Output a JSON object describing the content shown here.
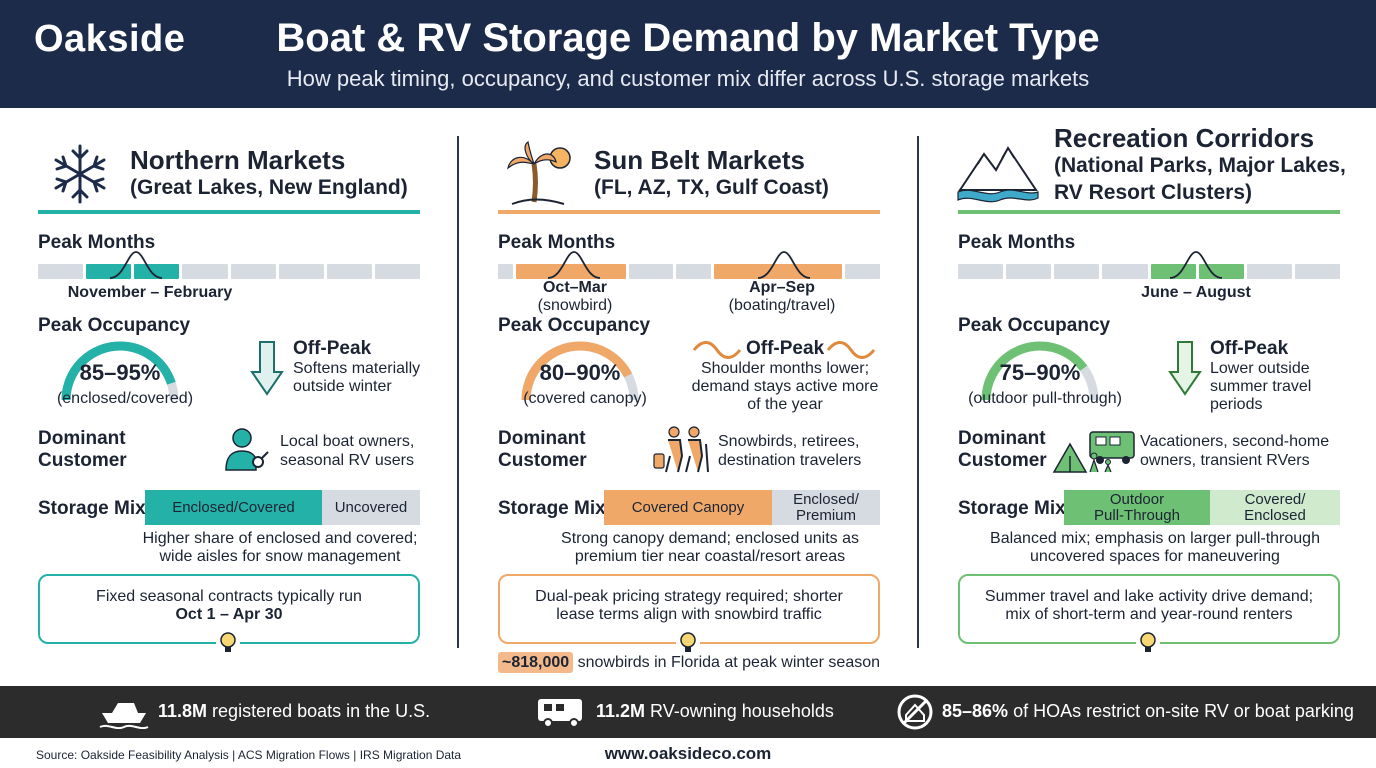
{
  "header": {
    "brand": "Oakside",
    "title": "Boat & RV Storage Demand by Market Type",
    "subtitle": "How peak timing, occupancy, and customer mix differ across U.S. storage markets"
  },
  "labels": {
    "peak_months": "Peak Months",
    "peak_occupancy": "Peak Occupancy",
    "dominant_customer_1": "Dominant",
    "dominant_customer_2": "Customer",
    "storage_mix": "Storage Mix",
    "off_peak": "Off-Peak"
  },
  "colors": {
    "header_bg": "#1c2b4a",
    "northern": "#24b1a8",
    "sunbelt": "#f0a868",
    "recreation": "#6ec174",
    "track": "#d6dbe2",
    "footer_bg": "#2c2c2c"
  },
  "northern": {
    "title": "Northern Markets",
    "subtitle": "(Great Lakes, New England)",
    "icon": "snowflake-icon",
    "peak_range": "November – February",
    "occupancy": "85–95%",
    "occupancy_note": "(enclosed/covered)",
    "occupancy_fill": 0.9,
    "offpeak_1": "Softens materially",
    "offpeak_2": "outside winter",
    "customer_1": "Local boat owners,",
    "customer_2": "seasonal RV users",
    "mix_a": "Enclosed/Covered",
    "mix_b": "Uncovered",
    "mix_note_1": "Higher share of enclosed and covered;",
    "mix_note_2": "wide aisles for snow management",
    "callout_1": "Fixed seasonal contracts typically run",
    "callout_2": "Oct 1 – Apr 30"
  },
  "sunbelt": {
    "title": "Sun Belt Markets",
    "subtitle": "(FL, AZ, TX, Gulf Coast)",
    "icon": "palm-tree-sun-icon",
    "peak_a": "Oct–Mar",
    "peak_a_note": "(snowbird)",
    "peak_b": "Apr–Sep",
    "peak_b_note": "(boating/travel)",
    "occupancy": "80–90%",
    "occupancy_note": "(covered canopy)",
    "occupancy_fill": 0.85,
    "offpeak_1": "Shoulder months lower;",
    "offpeak_2": "demand stays active more",
    "offpeak_3": "of the year",
    "customer_1": "Snowbirds, retirees,",
    "customer_2": "destination travelers",
    "mix_a": "Covered Canopy",
    "mix_b_1": "Enclosed/",
    "mix_b_2": "Premium",
    "mix_note_1": "Strong canopy demand; enclosed units as",
    "mix_note_2": "premium tier near coastal/resort areas",
    "callout_1": "Dual-peak pricing strategy required; shorter",
    "callout_2": "lease terms align with snowbird traffic",
    "snowbird_num": "~818,000",
    "snowbird_text": " snowbirds in Florida at peak winter season"
  },
  "recreation": {
    "title": "Recreation Corridors",
    "subtitle_1": "(National Parks, Major Lakes,",
    "subtitle_2": "RV Resort Clusters)",
    "icon": "mountain-lake-icon",
    "peak_range": "June – August",
    "occupancy": "75–90%",
    "occupancy_note": "(outdoor pull-through)",
    "occupancy_fill": 0.8,
    "offpeak_1": "Lower outside",
    "offpeak_2": "summer travel",
    "offpeak_3": "periods",
    "customer_1": "Vacationers, second-home",
    "customer_2": "owners, transient RVers",
    "mix_a_1": "Outdoor",
    "mix_a_2": "Pull-Through",
    "mix_b_1": "Covered/",
    "mix_b_2": "Enclosed",
    "mix_note_1": "Balanced mix; emphasis on larger pull-through",
    "mix_note_2": "uncovered spaces for maneuvering",
    "callout_1": "Summer travel and lake activity drive demand;",
    "callout_2": "mix of short-term and year-round renters"
  },
  "stats": [
    {
      "icon": "boat-icon",
      "value": "11.8M",
      "text": " registered boats in the U.S."
    },
    {
      "icon": "rv-icon",
      "value": "11.2M",
      "text": " RV-owning households"
    },
    {
      "icon": "no-parking-icon",
      "value": "85–86%",
      "text": " of HOAs restrict on-site RV or boat parking"
    }
  ],
  "footer": {
    "source": "Source: Oakside Feasibility Analysis | ACS Migration Flows | IRS Migration Data",
    "website": "www.oaksideco.com"
  }
}
